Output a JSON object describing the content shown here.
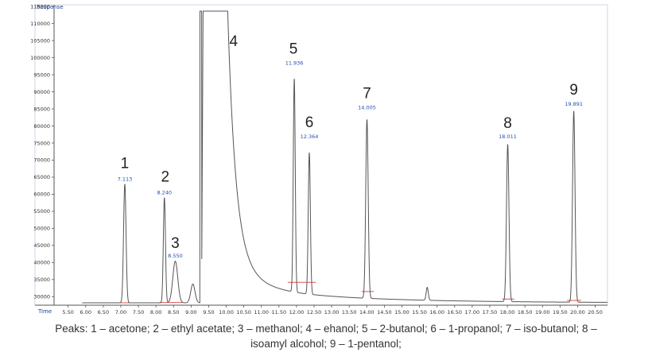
{
  "chart_data": {
    "type": "line",
    "ylabel": "Response",
    "xlabel": "Time",
    "xlim": [
      5.1,
      20.85
    ],
    "ylim": [
      27500,
      115500
    ],
    "xticks": [
      "5.50",
      "6.00",
      "6.50",
      "7.00",
      "7.50",
      "8.00",
      "8.50",
      "9.00",
      "9.50",
      "10.00",
      "10.50",
      "11.00",
      "11.50",
      "12.00",
      "12.50",
      "13.00",
      "13.50",
      "14.00",
      "14.50",
      "15.00",
      "15.50",
      "16.00",
      "16.50",
      "17.00",
      "17.50",
      "18.00",
      "18.50",
      "19.00",
      "19.50",
      "20.00",
      "20.50"
    ],
    "yticks": [
      "30000",
      "35000",
      "40000",
      "45000",
      "50000",
      "55000",
      "60000",
      "65000",
      "70000",
      "75000",
      "80000",
      "85000",
      "90000",
      "95000",
      "100000",
      "105000",
      "110000",
      "115000"
    ],
    "peaks": [
      {
        "num": "1",
        "rt": "7.113",
        "time": 7.113,
        "height": 63000
      },
      {
        "num": "2",
        "rt": "8.240",
        "time": 8.24,
        "height": 59000
      },
      {
        "num": "3",
        "rt": "8.550",
        "time": 8.55,
        "height": 40500
      },
      {
        "num": "4",
        "rt": "",
        "time": 9.35,
        "height": 115500
      },
      {
        "num": "5",
        "rt": "11.936",
        "time": 11.936,
        "height": 97000
      },
      {
        "num": "6",
        "rt": "12.364",
        "time": 12.364,
        "height": 75500
      },
      {
        "num": "7",
        "rt": "14.005",
        "time": 14.005,
        "height": 84000
      },
      {
        "num": "8",
        "rt": "18.011",
        "time": 18.011,
        "height": 75500
      },
      {
        "num": "9",
        "rt": "19.891",
        "time": 19.891,
        "height": 85000
      }
    ]
  },
  "caption": {
    "line1": "Peaks: 1 – acetone; 2 – ethyl acetate; 3 – methanol; 4 – ehanol; 5 – 2-butanol; 6 – 1-propanol; 7 – iso-butanol; 8 –",
    "line2": "isoamyl alcohol; 9 – 1-pentanol;"
  }
}
